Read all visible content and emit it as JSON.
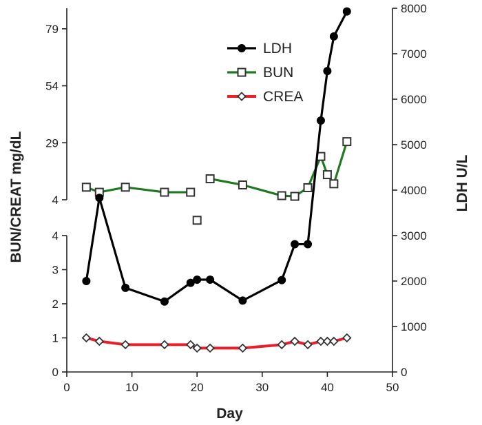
{
  "chart_data": {
    "type": "line",
    "xlabel": "Day",
    "ylabel_left": "BUN/CREAT mg/dL",
    "ylabel_right": "LDH U/L",
    "x_ticks": [
      0,
      10,
      20,
      30,
      40,
      50
    ],
    "xlim": [
      0,
      50
    ],
    "left_axis": {
      "lower_ticks": [
        0,
        1,
        2,
        3,
        4
      ],
      "lower_range": [
        0,
        4
      ],
      "upper_ticks": [
        4,
        29,
        54,
        79
      ],
      "upper_range": [
        4,
        88
      ]
    },
    "right_axis": {
      "ticks": [
        0,
        1000,
        2000,
        3000,
        4000,
        5000,
        6000,
        7000,
        8000
      ],
      "range": [
        0,
        8000
      ]
    },
    "grid": false,
    "legend_position": "top-center",
    "series": [
      {
        "name": "LDH",
        "axis": "right",
        "color": "#000000",
        "marker": "circle",
        "x": [
          3,
          5,
          9,
          15,
          19,
          20,
          22,
          27,
          33,
          35,
          37,
          39,
          40,
          41,
          43
        ],
        "y": [
          2000,
          3830,
          1850,
          1550,
          1960,
          2030,
          2030,
          1570,
          2020,
          2810,
          2810,
          5530,
          6620,
          7380,
          7930
        ]
      },
      {
        "name": "BUN",
        "axis": "left_upper",
        "color": "#1f7a1f",
        "marker": "open-square",
        "x": [
          3,
          5,
          9,
          15,
          19,
          20,
          22,
          27,
          33,
          35,
          37,
          39,
          40,
          41,
          43
        ],
        "y": [
          9.5,
          7.3,
          9.5,
          7.3,
          7.3,
          -5,
          13.2,
          10.5,
          5.8,
          5.5,
          9.3,
          23,
          15,
          11,
          29.5
        ],
        "connected": [
          true,
          true,
          true,
          true,
          false,
          false,
          true,
          true,
          true,
          true,
          true,
          true,
          true,
          true
        ]
      },
      {
        "name": "CREA",
        "axis": "left_lower",
        "color": "#e8202a",
        "marker": "open-diamond",
        "x": [
          3,
          5,
          9,
          15,
          19,
          20,
          22,
          27,
          33,
          35,
          37,
          39,
          40,
          41,
          43
        ],
        "y": [
          1.0,
          0.9,
          0.8,
          0.8,
          0.8,
          0.7,
          0.7,
          0.7,
          0.8,
          0.9,
          0.8,
          0.9,
          0.9,
          0.9,
          1.0
        ]
      }
    ]
  }
}
